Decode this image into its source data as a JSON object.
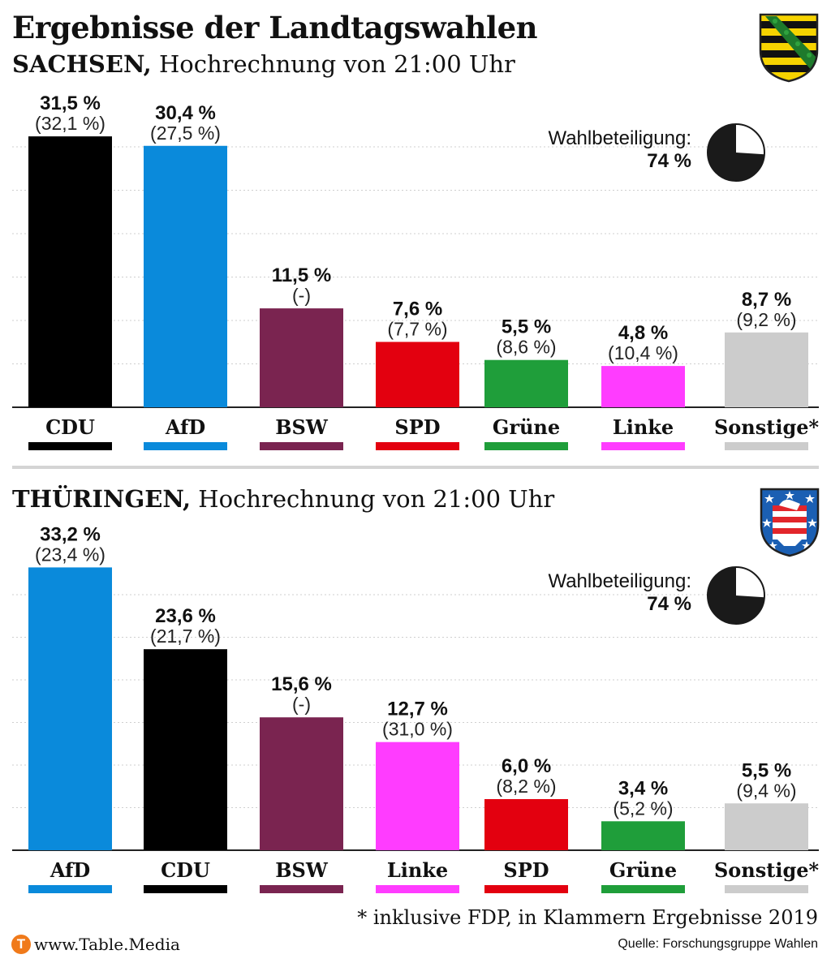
{
  "title": "Ergebnisse der Landtagswahlen",
  "footnote": "*  inklusive FDP, in Klammern Ergebnisse 2019",
  "source_url": "www.Table.Media",
  "source_credit": "Quelle: Forschungsgruppe Wahlen",
  "logo_letter": "T",
  "colors": {
    "CDU": "#000000",
    "AfD": "#0a8adb",
    "BSW": "#7a2450",
    "SPD": "#e3000f",
    "Grüne": "#1f9e3a",
    "Linke": "#ff3cff",
    "Sonstige*": "#cccccc"
  },
  "sachsen": {
    "region": "SACHSEN,",
    "subtitle_rest": " Hochrechnung von 21:00 Uhr",
    "turnout_label": "Wahlbeteiligung:",
    "turnout_value": "74 %",
    "turnout_fraction": 0.74
  },
  "thueringen": {
    "region": "THÜRINGEN,",
    "subtitle_rest": " Hochrechnung von 21:00 Uhr",
    "turnout_label": "Wahlbeteiligung:",
    "turnout_value": "74 %",
    "turnout_fraction": 0.74
  },
  "chart_data": [
    {
      "type": "bar",
      "title": "SACHSEN, Hochrechnung von 21:00 Uhr",
      "categories": [
        "CDU",
        "AfD",
        "BSW",
        "SPD",
        "Grüne",
        "Linke",
        "Sonstige*"
      ],
      "values": [
        31.5,
        30.4,
        11.5,
        7.6,
        5.5,
        4.8,
        8.7
      ],
      "value_labels": [
        "31,5 %",
        "30,4 %",
        "11,5 %",
        "7,6 %",
        "5,5 %",
        "4,8 %",
        "8,7 %"
      ],
      "previous_labels": [
        "(32,1 %)",
        "(27,5 %)",
        "(-)",
        "(7,7 %)",
        "(8,6 %)",
        "(10,4 %)",
        "(9,2 %)"
      ],
      "ylim": [
        0,
        35
      ],
      "grid": true
    },
    {
      "type": "bar",
      "title": "THÜRINGEN, Hochrechnung von 21:00 Uhr",
      "categories": [
        "AfD",
        "CDU",
        "BSW",
        "Linke",
        "SPD",
        "Grüne",
        "Sonstige*"
      ],
      "values": [
        33.2,
        23.6,
        15.6,
        12.7,
        6.0,
        3.4,
        5.5
      ],
      "value_labels": [
        "33,2 %",
        "23,6 %",
        "15,6 %",
        "12,7 %",
        "6,0 %",
        "3,4 %",
        "5,5 %"
      ],
      "previous_labels": [
        "(23,4 %)",
        "(21,7 %)",
        "(-)",
        "(31,0 %)",
        "(8,2 %)",
        "(5,2 %)",
        "(9,4 %)"
      ],
      "ylim": [
        0,
        35
      ],
      "grid": true
    }
  ]
}
